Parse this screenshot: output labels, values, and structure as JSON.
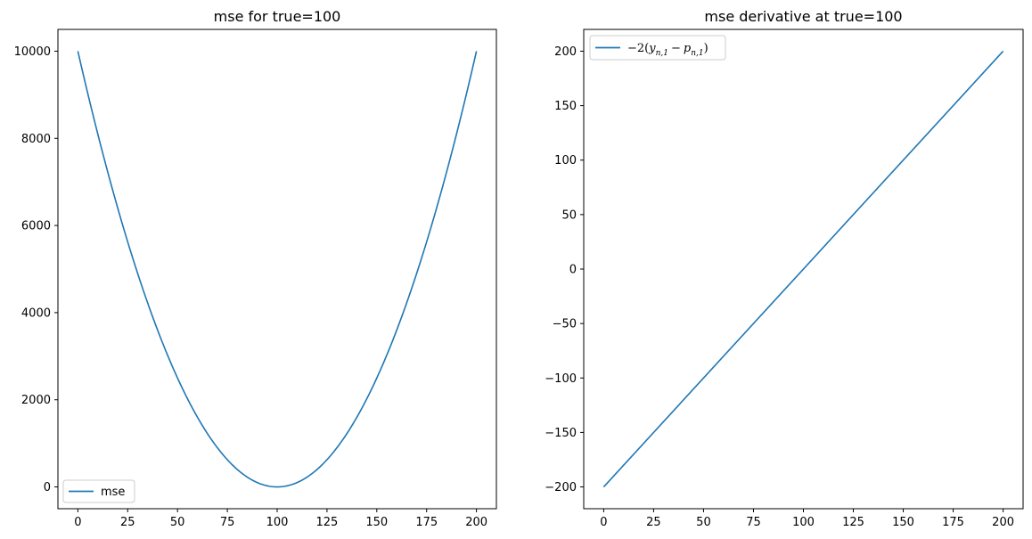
{
  "chart_data": [
    {
      "type": "line",
      "title": "mse for true=100",
      "xlabel": "",
      "ylabel": "",
      "xlim": [
        -10,
        210
      ],
      "ylim": [
        -500,
        10500
      ],
      "xticks": [
        0,
        25,
        50,
        75,
        100,
        125,
        150,
        175,
        200
      ],
      "xtick_labels": [
        "0",
        "25",
        "50",
        "75",
        "100",
        "125",
        "150",
        "175",
        "200"
      ],
      "yticks": [
        0,
        2000,
        4000,
        6000,
        8000,
        10000
      ],
      "ytick_labels": [
        "0",
        "2000",
        "4000",
        "6000",
        "8000",
        "10000"
      ],
      "grid": false,
      "legend": {
        "position": "lower-left",
        "entries": [
          "mse"
        ]
      },
      "series": [
        {
          "name": "mse",
          "color": "#1f77b4",
          "x": [
            0,
            10,
            20,
            30,
            40,
            50,
            60,
            70,
            80,
            90,
            100,
            110,
            120,
            130,
            140,
            150,
            160,
            170,
            180,
            190,
            200
          ],
          "y": [
            10000,
            8100,
            6400,
            4900,
            3600,
            2500,
            1600,
            900,
            400,
            100,
            0,
            100,
            400,
            900,
            1600,
            2500,
            3600,
            4900,
            6400,
            8100,
            10000
          ]
        }
      ]
    },
    {
      "type": "line",
      "title": "mse derivative at true=100",
      "xlabel": "",
      "ylabel": "",
      "xlim": [
        -10,
        210
      ],
      "ylim": [
        -220,
        220
      ],
      "xticks": [
        0,
        25,
        50,
        75,
        100,
        125,
        150,
        175,
        200
      ],
      "xtick_labels": [
        "0",
        "25",
        "50",
        "75",
        "100",
        "125",
        "150",
        "175",
        "200"
      ],
      "yticks": [
        -200,
        -150,
        -100,
        -50,
        0,
        50,
        100,
        150,
        200
      ],
      "ytick_labels": [
        "−200",
        "−150",
        "−100",
        "−50",
        "0",
        "50",
        "100",
        "150",
        "200"
      ],
      "grid": false,
      "legend": {
        "position": "upper-left",
        "entries": [
          "−2(y_{n,1} − p_{n,1})"
        ],
        "label_parts": {
          "prefix": "−2(",
          "y": "y",
          "y_sub": "n,1",
          "minus": "−",
          "p": "p",
          "p_sub": "n,1",
          "close": ")"
        }
      },
      "series": [
        {
          "name": "−2(y_{n,1} − p_{n,1})",
          "color": "#1f77b4",
          "x": [
            0,
            200
          ],
          "y": [
            -200,
            200
          ]
        }
      ]
    }
  ]
}
